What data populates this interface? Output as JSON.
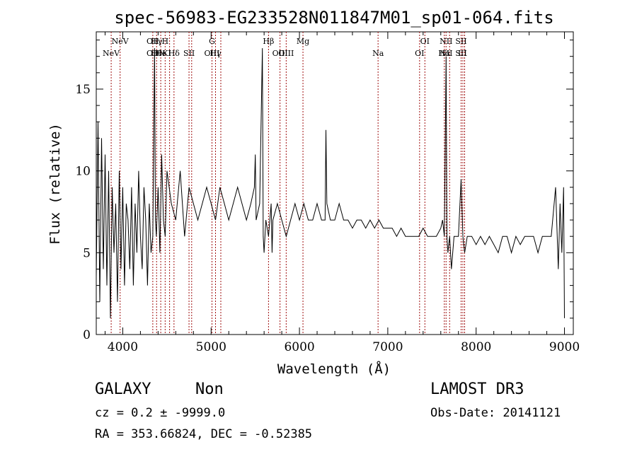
{
  "chart_data": {
    "type": "line",
    "title": "spec-56983-EG233528N011847M01_sp01-064.fits",
    "xlabel": "Wavelength (Å)",
    "ylabel": "Flux (relative)",
    "xlim": [
      3700,
      9100
    ],
    "ylim": [
      0,
      18.5
    ],
    "xticks": [
      {
        "value": 4000,
        "label": "4000"
      },
      {
        "value": 5000,
        "label": "5000"
      },
      {
        "value": 6000,
        "label": "6000"
      },
      {
        "value": 7000,
        "label": "7000"
      },
      {
        "value": 8000,
        "label": "8000"
      },
      {
        "value": 9000,
        "label": "9000"
      }
    ],
    "yticks": [
      {
        "value": 0,
        "label": "0"
      },
      {
        "value": 5,
        "label": "5"
      },
      {
        "value": 10,
        "label": "10"
      },
      {
        "value": 15,
        "label": "15"
      }
    ],
    "series": [
      {
        "name": "spectrum",
        "color": "#000000",
        "x": [
          3700,
          3720,
          3740,
          3760,
          3780,
          3800,
          3820,
          3840,
          3860,
          3880,
          3900,
          3920,
          3940,
          3960,
          3980,
          4000,
          4020,
          4040,
          4060,
          4080,
          4100,
          4120,
          4140,
          4160,
          4180,
          4200,
          4220,
          4240,
          4260,
          4280,
          4300,
          4320,
          4340,
          4360,
          4370,
          4380,
          4400,
          4420,
          4440,
          4460,
          4480,
          4500,
          4550,
          4600,
          4650,
          4700,
          4750,
          4800,
          4850,
          4900,
          4950,
          5000,
          5050,
          5100,
          5150,
          5200,
          5250,
          5300,
          5350,
          5400,
          5450,
          5490,
          5500,
          5510,
          5550,
          5580,
          5590,
          5600,
          5620,
          5650,
          5680,
          5690,
          5700,
          5750,
          5800,
          5850,
          5900,
          5950,
          6000,
          6050,
          6100,
          6150,
          6200,
          6250,
          6290,
          6300,
          6310,
          6350,
          6400,
          6450,
          6500,
          6550,
          6600,
          6650,
          6700,
          6750,
          6800,
          6850,
          6900,
          6950,
          7000,
          7050,
          7100,
          7150,
          7200,
          7250,
          7300,
          7350,
          7400,
          7450,
          7500,
          7550,
          7600,
          7620,
          7640,
          7660,
          7670,
          7680,
          7700,
          7720,
          7750,
          7800,
          7830,
          7850,
          7870,
          7900,
          7950,
          8000,
          8050,
          8100,
          8150,
          8200,
          8250,
          8300,
          8350,
          8400,
          8450,
          8500,
          8550,
          8600,
          8650,
          8700,
          8750,
          8800,
          8850,
          8900,
          8930,
          8950,
          8970,
          8990,
          9000
        ],
        "y": [
          3.5,
          13,
          2,
          12,
          4,
          11,
          3,
          10,
          1,
          9,
          5,
          8,
          2,
          10,
          4,
          9,
          3,
          8,
          7,
          4,
          9,
          3,
          8,
          5,
          10,
          6,
          4,
          9,
          7,
          3,
          8,
          5,
          6,
          17.5,
          7,
          6,
          9,
          5,
          11,
          7,
          6,
          10,
          8,
          7,
          10,
          6,
          9,
          8,
          7,
          8,
          9,
          8,
          7,
          9,
          8,
          7,
          8,
          9,
          8,
          7,
          8,
          9,
          11,
          7,
          8,
          17.5,
          6,
          5,
          7,
          6,
          8,
          5,
          7,
          8,
          7,
          6,
          7,
          8,
          7,
          8,
          7,
          7,
          8,
          7,
          7,
          12.5,
          8,
          7,
          7,
          8,
          7,
          7,
          6.5,
          7,
          7,
          6.5,
          7,
          6.5,
          7,
          6.5,
          6.5,
          6.5,
          6,
          6.5,
          6,
          6,
          6,
          6,
          6.5,
          6,
          6,
          6,
          6.5,
          7,
          6,
          17,
          6,
          5,
          6,
          4,
          6,
          6,
          9.5,
          6,
          5,
          6,
          6,
          5.5,
          6,
          5.5,
          6,
          5.5,
          5,
          6,
          6,
          5,
          6,
          5.5,
          6,
          6,
          6,
          5,
          6,
          6,
          6,
          9,
          4,
          8,
          5,
          9,
          1
        ]
      }
    ],
    "lines": [
      {
        "wave": 3869,
        "upper": "",
        "lower": "NeV"
      },
      {
        "wave": 3970,
        "upper": "NeV",
        "lower": ""
      },
      {
        "wave": 4340,
        "upper": "OII",
        "lower": "OII"
      },
      {
        "wave": 4383,
        "upper": "Hγ",
        "lower": "Hθ"
      },
      {
        "wave": 4430,
        "upper": "",
        "lower": "He"
      },
      {
        "wave": 4480,
        "upper": "H",
        "lower": "K"
      },
      {
        "wave": 4530,
        "upper": "",
        "lower": "I"
      },
      {
        "wave": 4580,
        "upper": "",
        "lower": "Hδ"
      },
      {
        "wave": 4750,
        "upper": "",
        "lower": "SII"
      },
      {
        "wave": 4780,
        "upper": "",
        "lower": ""
      },
      {
        "wave": 5010,
        "upper": "G",
        "lower": "OIII"
      },
      {
        "wave": 5050,
        "upper": "",
        "lower": "Hγ"
      },
      {
        "wave": 5110,
        "upper": "",
        "lower": ""
      },
      {
        "wave": 5650,
        "upper": "Hβ",
        "lower": ""
      },
      {
        "wave": 5780,
        "upper": "",
        "lower": "OIII"
      },
      {
        "wave": 5850,
        "upper": "",
        "lower": "OIII"
      },
      {
        "wave": 6040,
        "upper": "Mg",
        "lower": ""
      },
      {
        "wave": 6890,
        "upper": "",
        "lower": "Na"
      },
      {
        "wave": 7360,
        "upper": "",
        "lower": "OI"
      },
      {
        "wave": 7420,
        "upper": "OI",
        "lower": ""
      },
      {
        "wave": 7640,
        "upper": "",
        "lower": "Hα"
      },
      {
        "wave": 7660,
        "upper": "NII",
        "lower": "NII"
      },
      {
        "wave": 7700,
        "upper": "",
        "lower": ""
      },
      {
        "wave": 7830,
        "upper": "SII",
        "lower": "SII"
      },
      {
        "wave": 7850,
        "upper": "",
        "lower": "L1"
      },
      {
        "wave": 7870,
        "upper": "",
        "lower": ""
      }
    ]
  },
  "info": {
    "class_label": "GALAXY",
    "subclass_label": "Non",
    "survey_label": "LAMOST DR3",
    "cz_text": "cz = 0.2 ± -9999.0",
    "obs_date_text": "Obs-Date: 20141121",
    "coords_text": "RA = 353.66824, DEC =  -0.52385"
  },
  "colors": {
    "line_marker": "#a01010",
    "spectrum": "#000000"
  }
}
